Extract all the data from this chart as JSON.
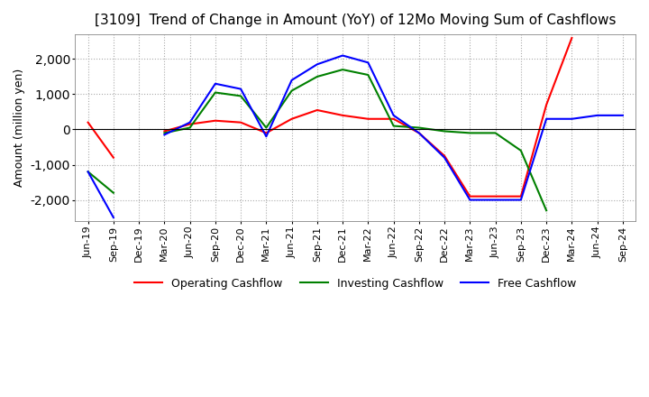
{
  "title": "[3109]  Trend of Change in Amount (YoY) of 12Mo Moving Sum of Cashflows",
  "ylabel": "Amount (million yen)",
  "ylim": [
    -2600,
    2700
  ],
  "yticks": [
    -2000,
    -1000,
    0,
    1000,
    2000
  ],
  "x_labels": [
    "Jun-19",
    "Sep-19",
    "Dec-19",
    "Mar-20",
    "Jun-20",
    "Sep-20",
    "Dec-20",
    "Mar-21",
    "Jun-21",
    "Sep-21",
    "Dec-21",
    "Mar-22",
    "Jun-22",
    "Sep-22",
    "Dec-22",
    "Mar-23",
    "Jun-23",
    "Sep-23",
    "Dec-23",
    "Mar-24",
    "Jun-24",
    "Sep-24"
  ],
  "operating": [
    200,
    -800,
    null,
    -50,
    150,
    250,
    200,
    -100,
    300,
    550,
    400,
    300,
    300,
    -100,
    -750,
    -1900,
    -1900,
    -1900,
    700,
    2600,
    null,
    null
  ],
  "investing": [
    -1200,
    -1800,
    null,
    -100,
    50,
    1050,
    950,
    50,
    1100,
    1500,
    1700,
    1550,
    100,
    50,
    -50,
    -100,
    -100,
    -600,
    -2300,
    null,
    null,
    null
  ],
  "free": [
    -1200,
    -2500,
    null,
    -150,
    200,
    1300,
    1150,
    -200,
    1400,
    1850,
    2100,
    1900,
    400,
    -100,
    -800,
    -2000,
    -2000,
    -2000,
    300,
    300,
    400,
    400
  ],
  "operating_color": "#ff0000",
  "investing_color": "#008000",
  "free_color": "#0000ff",
  "background_color": "#ffffff",
  "grid_color": "#aaaaaa",
  "title_fontsize": 11,
  "axis_fontsize": 8,
  "legend_fontsize": 9
}
